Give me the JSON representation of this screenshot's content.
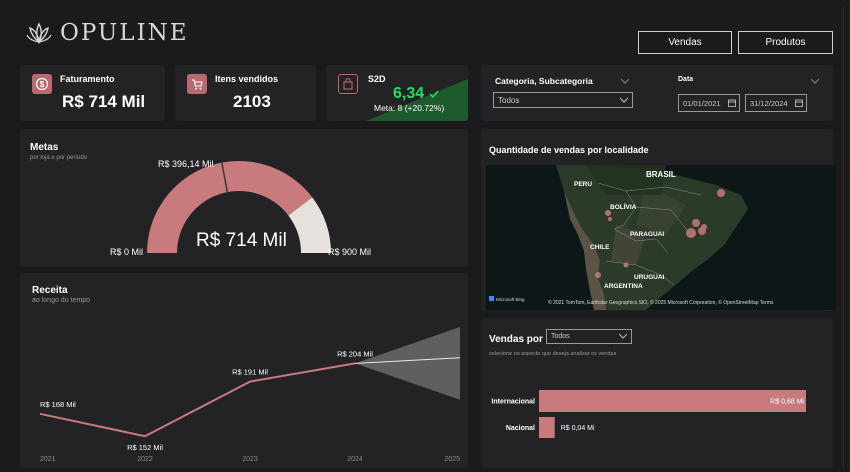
{
  "brand": {
    "name": "OPULINE"
  },
  "nav": {
    "vendas": "Vendas",
    "produtos": "Produtos"
  },
  "kpis": {
    "faturamento": {
      "label": "Faturamento",
      "value": "R$ 714 Mil"
    },
    "itens": {
      "label": "Itens vendidos",
      "value": "2103"
    },
    "s2d": {
      "label": "S2D",
      "value": "6,34",
      "meta": "Meta: 8 (+20.72%)"
    }
  },
  "filters": {
    "categoria": {
      "label": "Categoria, Subcategoria",
      "value": "Todos"
    },
    "data": {
      "label": "Data",
      "start": "01/01/2021",
      "end": "31/12/2024"
    }
  },
  "metas": {
    "title": "Metas",
    "subtitle": "por loja e por período",
    "center_value": "R$ 714 Mil",
    "min_label": "R$ 0 Mil",
    "max_label": "R$ 900 Mil",
    "target_label": "R$ 396,14 Mil",
    "gauge": {
      "min": 0,
      "max": 900,
      "value": 714,
      "target": 396.14
    }
  },
  "map": {
    "title": "Quantidade de vendas por localidade",
    "labels": {
      "brasil": "BRASIL",
      "peru": "PERU",
      "bolivia": "BOLÍVIA",
      "paraguai": "PARAGUAI",
      "chile": "CHILE",
      "uruguai": "URUGUAI",
      "argentina": "ARGENTINA"
    },
    "attribution": "© 2021 TomTom, Earthstar Geographics SIO, © 2025 Microsoft Corporation, © OpenStreetMap  Terms",
    "bing": "Microsoft Bing"
  },
  "receita": {
    "title": "Receita",
    "subtitle": "ao longo do tempo"
  },
  "vendas_por": {
    "title": "Vendas por",
    "select_value": "Todos",
    "subtitle": "selecione os aspecto que deseja analisar os vendas"
  },
  "chart_data": [
    {
      "type": "line",
      "x": [
        "2021",
        "2022",
        "2023",
        "2024",
        "2025"
      ],
      "series": [
        {
          "values": [
            168,
            152,
            191,
            204,
            null
          ]
        }
      ],
      "data_labels": [
        "R$ 168 Mil",
        "R$ 152 Mil",
        "R$ 191 Mil",
        "R$ 204 Mil"
      ],
      "forecast": {
        "from": "2024",
        "to": "2025",
        "value_end": 208,
        "upper_end": 230,
        "lower_end": 178
      },
      "ylim": [
        140,
        240
      ]
    },
    {
      "type": "bar",
      "orientation": "horizontal",
      "categories": [
        "Internacional",
        "Nacional"
      ],
      "values": [
        0.68,
        0.04
      ],
      "data_labels": [
        "R$ 0,68 Mi",
        "R$ 0,04 Mi"
      ],
      "xlim": [
        0,
        0.68
      ]
    }
  ],
  "colors": {
    "accent": "#c87a7d",
    "gauge_rest": "#e6e1dc",
    "good": "#22c55e",
    "good_bg": "#1e5a2c",
    "forecast": "#6a6a6a"
  }
}
